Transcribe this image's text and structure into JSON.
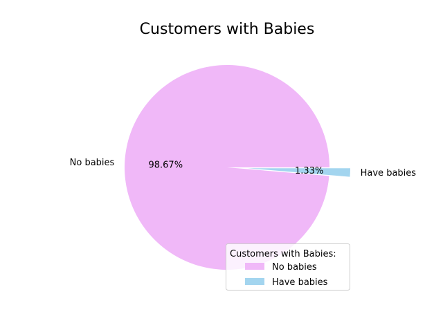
{
  "chart_data": {
    "type": "pie",
    "title": "Customers with Babies",
    "slices": [
      {
        "label": "No babies",
        "value": 98.67,
        "pct_label": "98.67%",
        "color": "#f0b8f8"
      },
      {
        "label": "Have babies",
        "value": 1.33,
        "pct_label": "1.33%",
        "color": "#a3d5ef"
      }
    ],
    "legend": {
      "title": "Customers with Babies:",
      "placement": "lower-right",
      "entries": [
        "No babies",
        "Have babies"
      ]
    }
  }
}
